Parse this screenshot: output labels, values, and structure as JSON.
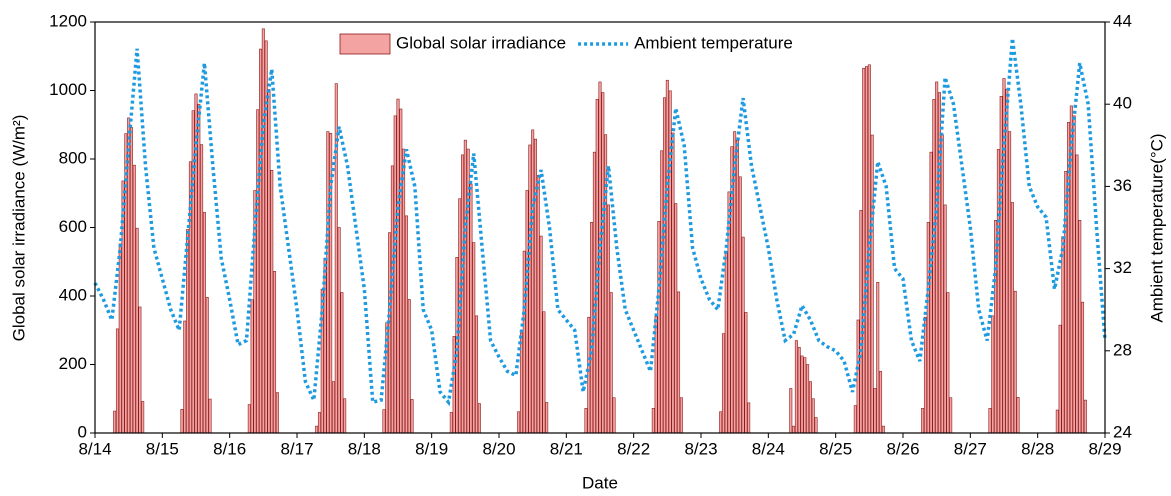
{
  "chart_data": {
    "type": "combo",
    "x_label": "Date",
    "y_label": "Global solar irradiance (W/m²)",
    "y2_label": "Ambient temperature(°C)",
    "xlim": [
      0,
      360
    ],
    "xticks": [
      {
        "value": 0,
        "label": "8/14"
      },
      {
        "value": 24,
        "label": "8/15"
      },
      {
        "value": 48,
        "label": "8/16"
      },
      {
        "value": 72,
        "label": "8/17"
      },
      {
        "value": 96,
        "label": "8/18"
      },
      {
        "value": 120,
        "label": "8/19"
      },
      {
        "value": 144,
        "label": "8/20"
      },
      {
        "value": 168,
        "label": "8/21"
      },
      {
        "value": 192,
        "label": "8/22"
      },
      {
        "value": 216,
        "label": "8/23"
      },
      {
        "value": 240,
        "label": "8/24"
      },
      {
        "value": 264,
        "label": "8/25"
      },
      {
        "value": 288,
        "label": "8/26"
      },
      {
        "value": 312,
        "label": "8/27"
      },
      {
        "value": 336,
        "label": "8/28"
      },
      {
        "value": 360,
        "label": "8/29"
      }
    ],
    "ylim": [
      0,
      1200
    ],
    "yticks": [
      0,
      200,
      400,
      600,
      800,
      1000,
      1200
    ],
    "y2lim": [
      24,
      44
    ],
    "y2ticks": [
      24,
      28,
      32,
      36,
      40,
      44
    ],
    "legend": "top",
    "series": [
      {
        "name": "Global solar irradiance",
        "type": "bar",
        "color": "#f4a3a3",
        "edge_color": "#8b1a1a",
        "x": [
          7,
          8,
          9,
          10,
          11,
          12,
          13,
          14,
          15,
          16,
          17,
          31,
          32,
          33,
          34,
          35,
          36,
          37,
          38,
          39,
          40,
          41,
          55,
          56,
          57,
          58,
          59,
          60,
          61,
          62,
          63,
          64,
          65,
          79,
          80,
          81,
          82,
          83,
          84,
          85,
          86,
          87,
          88,
          89,
          103,
          104,
          105,
          106,
          107,
          108,
          109,
          110,
          111,
          112,
          113,
          127,
          128,
          129,
          130,
          131,
          132,
          133,
          134,
          135,
          136,
          137,
          151,
          152,
          153,
          154,
          155,
          156,
          157,
          158,
          159,
          160,
          161,
          175,
          176,
          177,
          178,
          179,
          180,
          181,
          182,
          183,
          184,
          185,
          199,
          200,
          201,
          202,
          203,
          204,
          205,
          206,
          207,
          208,
          209,
          223,
          224,
          225,
          226,
          227,
          228,
          229,
          230,
          231,
          232,
          233,
          247,
          248,
          249,
          250,
          251,
          252,
          253,
          254,
          255,
          256,
          257,
          271,
          272,
          273,
          274,
          275,
          276,
          277,
          278,
          279,
          280,
          281,
          295,
          296,
          297,
          298,
          299,
          300,
          301,
          302,
          303,
          304,
          305,
          319,
          320,
          321,
          322,
          323,
          324,
          325,
          326,
          327,
          328,
          329,
          343,
          344,
          345,
          346,
          347,
          348,
          349,
          350,
          351,
          352,
          353
        ],
        "values": [
          64,
          304,
          552,
          736,
          874,
          920,
          892,
          782,
          598,
          368,
          92,
          69,
          327,
          594,
          792,
          941,
          990,
          960,
          842,
          644,
          396,
          99,
          83,
          389,
          708,
          944,
          1121,
          1180,
          1145,
          1003,
          767,
          472,
          118,
          20,
          60,
          420,
          510,
          880,
          875,
          150,
          1020,
          600,
          410,
          100,
          68,
          322,
          585,
          780,
          926,
          975,
          946,
          829,
          634,
          390,
          98,
          60,
          282,
          513,
          684,
          812,
          855,
          829,
          727,
          556,
          342,
          86,
          62,
          292,
          531,
          708,
          841,
          885,
          858,
          752,
          575,
          354,
          89,
          72,
          338,
          615,
          820,
          974,
          1025,
          994,
          871,
          666,
          410,
          103,
          72,
          340,
          618,
          824,
          979,
          1030,
          999,
          876,
          670,
          412,
          103,
          62,
          290,
          528,
          704,
          836,
          880,
          854,
          748,
          572,
          352,
          88,
          0,
          130,
          20,
          270,
          250,
          225,
          220,
          200,
          150,
          100,
          45,
          80,
          330,
          650,
          1065,
          1070,
          1075,
          870,
          130,
          440,
          180,
          20,
          72,
          338,
          615,
          820,
          974,
          1025,
          994,
          871,
          666,
          410,
          103,
          72,
          342,
          621,
          828,
          983,
          1035,
          1004,
          880,
          673,
          414,
          104,
          67,
          315,
          573,
          764,
          907,
          955,
          926,
          812,
          621,
          382,
          96
        ]
      },
      {
        "name": "Ambient temperature",
        "type": "line",
        "axis": "y2",
        "color": "#1e9be0",
        "x": [
          0,
          3,
          6,
          9,
          12,
          15,
          18,
          21,
          24,
          27,
          30,
          33,
          36,
          39,
          42,
          45,
          48,
          51,
          54,
          57,
          60,
          63,
          66,
          69,
          72,
          75,
          78,
          81,
          84,
          87,
          90,
          93,
          96,
          99,
          102,
          105,
          108,
          111,
          114,
          117,
          120,
          123,
          126,
          129,
          132,
          135,
          138,
          141,
          144,
          147,
          150,
          153,
          156,
          159,
          162,
          165,
          168,
          171,
          174,
          177,
          180,
          183,
          186,
          189,
          192,
          195,
          198,
          201,
          204,
          207,
          210,
          213,
          216,
          219,
          222,
          225,
          228,
          231,
          234,
          237,
          240,
          243,
          246,
          249,
          252,
          255,
          258,
          261,
          264,
          267,
          270,
          273,
          276,
          279,
          282,
          285,
          288,
          291,
          294,
          297,
          300,
          303,
          306,
          309,
          312,
          315,
          318,
          321,
          324,
          327,
          330,
          333,
          336,
          339,
          342,
          345,
          348,
          351,
          354,
          357,
          360
        ],
        "values": [
          31.3,
          30.5,
          29.5,
          33,
          38,
          42.7,
          37,
          33,
          31.5,
          30,
          29,
          33.5,
          38,
          42,
          37,
          32.5,
          30.5,
          28.3,
          28.5,
          34,
          39,
          41.7,
          36,
          33,
          30,
          26.5,
          25.6,
          30,
          36,
          38.9,
          37,
          34,
          31,
          25.5,
          25.6,
          30,
          35,
          37.8,
          36,
          30,
          29,
          26,
          25.5,
          28,
          34,
          37.6,
          33,
          28.5,
          27.7,
          27,
          26.8,
          30,
          35,
          36.8,
          34,
          30,
          29.5,
          29,
          26,
          28,
          33,
          37,
          33,
          30,
          29,
          28,
          27,
          31,
          36,
          39.8,
          38,
          33,
          31.5,
          30.5,
          30,
          33,
          37,
          40.3,
          37,
          35,
          33,
          30.5,
          28.5,
          28.8,
          30.2,
          29.5,
          28.5,
          28.2,
          28,
          27.5,
          26,
          28,
          33,
          37.2,
          36,
          32,
          31.5,
          28.5,
          27.5,
          31,
          35,
          41.3,
          40,
          37,
          34,
          30,
          28.5,
          32,
          38,
          43.2,
          40,
          36,
          35,
          34.5,
          31,
          33,
          38,
          42,
          40,
          34,
          28.5
        ]
      }
    ]
  }
}
